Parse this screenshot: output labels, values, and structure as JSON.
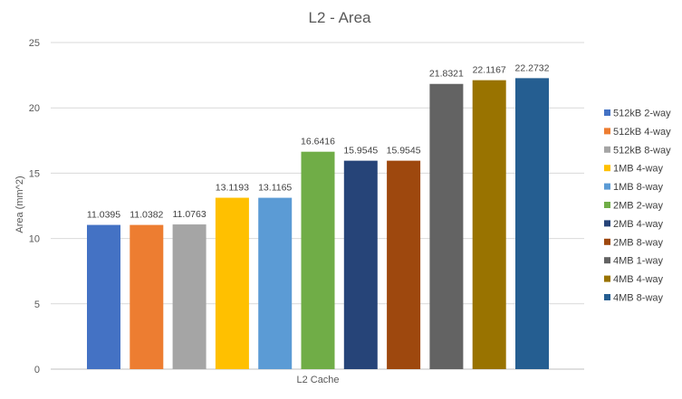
{
  "chart_data": {
    "type": "bar",
    "title": "L2 - Area",
    "xlabel": "L2 Cache",
    "ylabel": "Area (mm^2)",
    "ylim": [
      0,
      25
    ],
    "yticks": [
      0,
      5,
      10,
      15,
      20,
      25
    ],
    "grid": true,
    "legend_position": "right",
    "series": [
      {
        "name": "512kB  2-way",
        "value": 11.0395,
        "color": "#4472C4"
      },
      {
        "name": "512kB  4-way",
        "value": 11.0382,
        "color": "#ED7D31"
      },
      {
        "name": "512kB  8-way",
        "value": 11.0763,
        "color": "#A5A5A5"
      },
      {
        "name": "1MB 4-way",
        "value": 13.1193,
        "color": "#FFC000"
      },
      {
        "name": "1MB 8-way",
        "value": 13.1165,
        "color": "#5B9BD5"
      },
      {
        "name": "2MB 2-way",
        "value": 16.6416,
        "color": "#70AD47"
      },
      {
        "name": "2MB 4-way",
        "value": 15.9545,
        "color": "#264478"
      },
      {
        "name": "2MB 8-way",
        "value": 15.9545,
        "color": "#9E480E"
      },
      {
        "name": "4MB 1-way",
        "value": 21.8321,
        "color": "#636363"
      },
      {
        "name": "4MB 4-way",
        "value": 22.1167,
        "color": "#997300"
      },
      {
        "name": "4MB 8-way",
        "value": 22.2732,
        "color": "#255E91"
      }
    ]
  }
}
